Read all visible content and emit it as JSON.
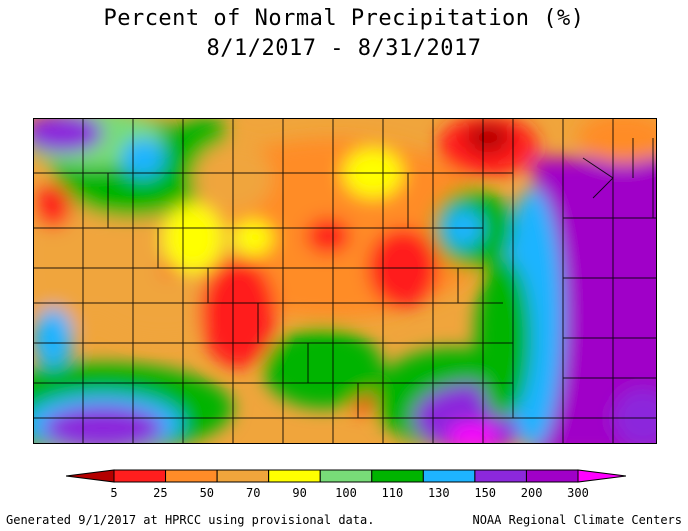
{
  "title": "Percent of Normal Precipitation (%)",
  "subtitle": "8/1/2017 - 8/31/2017",
  "legend": {
    "ticks": [
      "5",
      "25",
      "50",
      "70",
      "90",
      "100",
      "110",
      "130",
      "150",
      "200",
      "300"
    ],
    "colors": [
      "#b40000",
      "#ff1e1e",
      "#ff8c28",
      "#f0a53c",
      "#ffff00",
      "#78dc78",
      "#00b400",
      "#1eb4ff",
      "#8c28dc",
      "#a000c8",
      "#ff00ff"
    ]
  },
  "footer": {
    "left": "Generated 9/1/2017 at HPRCC using provisional data.",
    "right": "NOAA Regional Climate Centers"
  }
}
